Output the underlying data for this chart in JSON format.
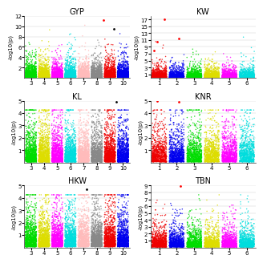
{
  "panels": [
    {
      "title": "GYP",
      "ylabel": "-log10(p)",
      "ylim": [
        0,
        12
      ],
      "yticks": [
        2,
        4,
        6,
        8,
        10,
        12
      ],
      "chrom_labels": [
        "3",
        "4",
        "5",
        "6",
        "7",
        "8",
        "9",
        "10"
      ],
      "chrom_colors": [
        "#00dd00",
        "#dddd00",
        "#ff00ff",
        "#00dddd",
        "#ffbbbb",
        "#888888",
        "#ee0000",
        "#0000ee"
      ],
      "n_points": 8000,
      "seed": 42,
      "outliers": [
        [
          8.5,
          11.2,
          "red"
        ],
        [
          9.3,
          9.5,
          "black"
        ]
      ]
    },
    {
      "title": "KW",
      "ylabel": "-log10(p)",
      "ylim": [
        0,
        18
      ],
      "yticks": [
        1,
        3,
        5,
        7,
        9,
        11,
        13,
        15,
        17
      ],
      "chrom_labels": [
        "1",
        "2",
        "3",
        "4",
        "5",
        "6"
      ],
      "chrom_colors": [
        "#ee0000",
        "#0000ee",
        "#00dd00",
        "#dddd00",
        "#ff00ff",
        "#00dddd"
      ],
      "n_points": 5000,
      "seed": 43,
      "outliers": [
        [
          1.3,
          17.0,
          "red"
        ],
        [
          0.9,
          10.5,
          "red"
        ],
        [
          0.7,
          8.0,
          "red"
        ],
        [
          2.1,
          11.5,
          "red"
        ]
      ]
    },
    {
      "title": "KL",
      "ylabel": "-log10(p)",
      "ylim": [
        0,
        5
      ],
      "yticks": [
        1,
        2,
        3,
        4,
        5
      ],
      "chrom_labels": [
        "3",
        "4",
        "5",
        "6",
        "7",
        "8",
        "9",
        "10"
      ],
      "chrom_colors": [
        "#00dd00",
        "#dddd00",
        "#ff00ff",
        "#00dddd",
        "#ffbbbb",
        "#888888",
        "#ee0000",
        "#0000ee"
      ],
      "n_points": 8000,
      "seed": 44,
      "outliers": [
        [
          9.5,
          4.9,
          "black"
        ]
      ]
    },
    {
      "title": "KNR",
      "ylabel": "-log10(p)",
      "ylim": [
        0,
        5
      ],
      "yticks": [
        1,
        2,
        3,
        4,
        5
      ],
      "chrom_labels": [
        "1",
        "2",
        "3",
        "4",
        "5",
        "6"
      ],
      "chrom_colors": [
        "#ee0000",
        "#0000ee",
        "#00dd00",
        "#dddd00",
        "#ff00ff",
        "#00dddd"
      ],
      "n_points": 5000,
      "seed": 45,
      "outliers": [
        [
          0.9,
          5.0,
          "red"
        ],
        [
          2.1,
          4.9,
          "red"
        ]
      ]
    },
    {
      "title": "HKW",
      "ylabel": "-log10(p)",
      "ylim": [
        0,
        5
      ],
      "yticks": [
        1,
        2,
        3,
        4,
        5
      ],
      "chrom_labels": [
        "3",
        "4",
        "5",
        "6",
        "7",
        "8",
        "9",
        "10"
      ],
      "chrom_colors": [
        "#00dd00",
        "#dddd00",
        "#ff00ff",
        "#00dddd",
        "#ffbbbb",
        "#888888",
        "#ee0000",
        "#0000ee"
      ],
      "n_points": 8000,
      "seed": 46,
      "outliers": [
        [
          7.2,
          4.7,
          "black"
        ]
      ]
    },
    {
      "title": "TBN",
      "ylabel": "-log10(p)",
      "ylim": [
        0,
        9
      ],
      "yticks": [
        1,
        2,
        3,
        4,
        5,
        6,
        7,
        8,
        9
      ],
      "chrom_labels": [
        "1",
        "2",
        "3",
        "4",
        "5",
        "6"
      ],
      "chrom_colors": [
        "#ee0000",
        "#0000ee",
        "#00dd00",
        "#dddd00",
        "#ff00ff",
        "#00dddd"
      ],
      "n_points": 5000,
      "seed": 47,
      "outliers": [
        [
          2.2,
          8.9,
          "red"
        ]
      ]
    }
  ],
  "fig_bg": "#ffffff",
  "title_fontsize": 7,
  "tick_fontsize": 5,
  "ylabel_fontsize": 5,
  "point_size": 1.2,
  "point_alpha": 0.8
}
